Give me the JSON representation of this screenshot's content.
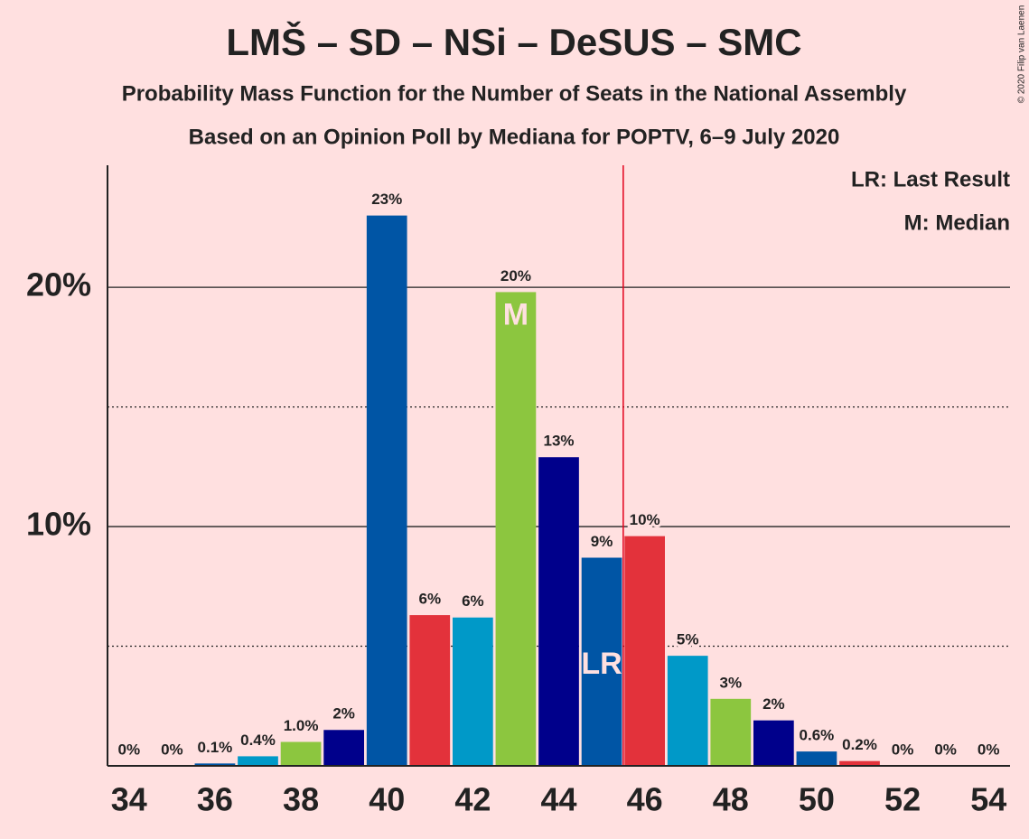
{
  "chart_data": {
    "type": "bar",
    "title": "LMŠ – SD – NSi – DeSUS – SMC",
    "subtitle": "Probability Mass Function for the Number of Seats in the National Assembly",
    "subtitle2": "Based on an Opinion Poll by Mediana for POPTV, 6–9 July 2020",
    "copyright": "© 2020 Filip van Laenen",
    "x": [
      34,
      35,
      36,
      37,
      38,
      39,
      40,
      41,
      42,
      43,
      44,
      45,
      46,
      47,
      48,
      49,
      50,
      51,
      52,
      53,
      54
    ],
    "values": [
      0,
      0,
      0.1,
      0.4,
      1.0,
      1.5,
      23.0,
      6.3,
      6.2,
      19.8,
      12.9,
      8.7,
      9.6,
      4.6,
      2.8,
      1.9,
      0.6,
      0.2,
      0,
      0,
      0
    ],
    "value_labels": [
      "0%",
      "0%",
      "0.1%",
      "0.4%",
      "1.0%",
      "2%",
      "23%",
      "6%",
      "6%",
      "20%",
      "13%",
      "9%",
      "10%",
      "5%",
      "3%",
      "2%",
      "0.6%",
      "0.2%",
      "0%",
      "0%",
      "0%"
    ],
    "colors": [
      "#0055a5",
      "#e3323b",
      "#0055a5",
      "#0099c8",
      "#8cc63f",
      "#00008b",
      "#0055a5",
      "#e3323b",
      "#0099c8",
      "#8cc63f",
      "#00008b",
      "#0055a5",
      "#e3323b",
      "#0099c8",
      "#8cc63f",
      "#00008b",
      "#0055a5",
      "#e3323b",
      "#0099c8",
      "#8cc63f",
      "#00008b"
    ],
    "xlim": [
      33.5,
      54.5
    ],
    "xticks": [
      34,
      36,
      38,
      40,
      42,
      44,
      46,
      48,
      50,
      52,
      54
    ],
    "ylim": [
      0,
      25.1
    ],
    "yticks": [
      {
        "value": 10,
        "label": "10%"
      },
      {
        "value": 20,
        "label": "20%"
      }
    ],
    "y_minor_grid": [
      5,
      15
    ],
    "median": 43,
    "median_label": "M",
    "last_result": 45,
    "last_result_label": "LR",
    "legend": [
      "LR: Last Result",
      "M: Median"
    ]
  }
}
